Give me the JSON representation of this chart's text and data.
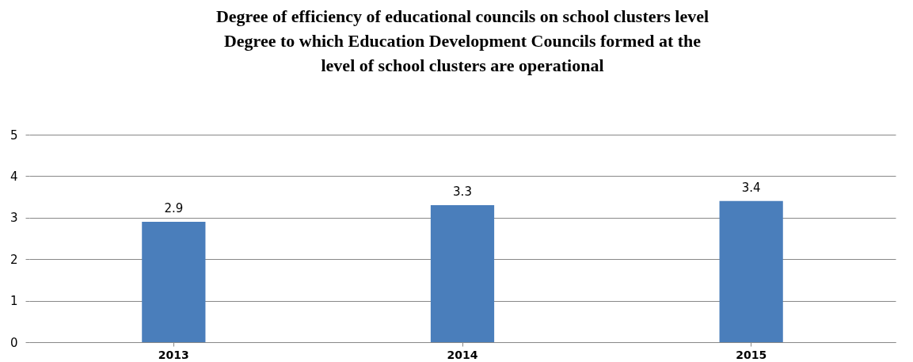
{
  "chart_data": {
    "type": "bar",
    "title": "Degree of efficiency of educational councils on school clusters level",
    "subtitle": "Degree to which Education Development Councils formed at the level of school clusters are operational",
    "categories": [
      "2013",
      "2014",
      "2015"
    ],
    "values": [
      2.9,
      3.3,
      3.4
    ],
    "color": "#4a7ebb",
    "ylim": [
      0,
      5
    ],
    "yticks": [
      0,
      1,
      2,
      3,
      4,
      5
    ],
    "grid": true,
    "data_labels": true
  }
}
